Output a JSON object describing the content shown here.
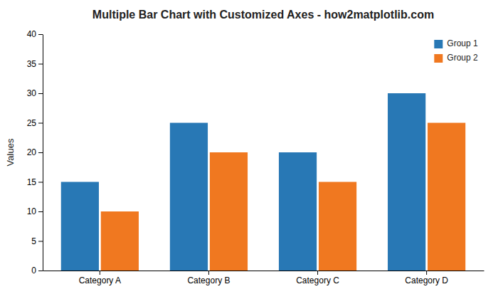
{
  "chart_data": {
    "type": "bar",
    "title": "Multiple Bar Chart with Customized Axes - how2matplotlib.com",
    "ylabel": "Values",
    "categories": [
      "Category A",
      "Category B",
      "Category C",
      "Category D"
    ],
    "series": [
      {
        "name": "Group 1",
        "color": "#2878b5",
        "values": [
          15,
          25,
          20,
          30
        ]
      },
      {
        "name": "Group 2",
        "color": "#f07820",
        "values": [
          10,
          20,
          15,
          25
        ]
      }
    ],
    "ylim": [
      0,
      40
    ],
    "yticks": [
      0,
      5,
      10,
      15,
      20,
      25,
      30,
      35,
      40
    ],
    "grid": false,
    "legend": "upper right"
  }
}
